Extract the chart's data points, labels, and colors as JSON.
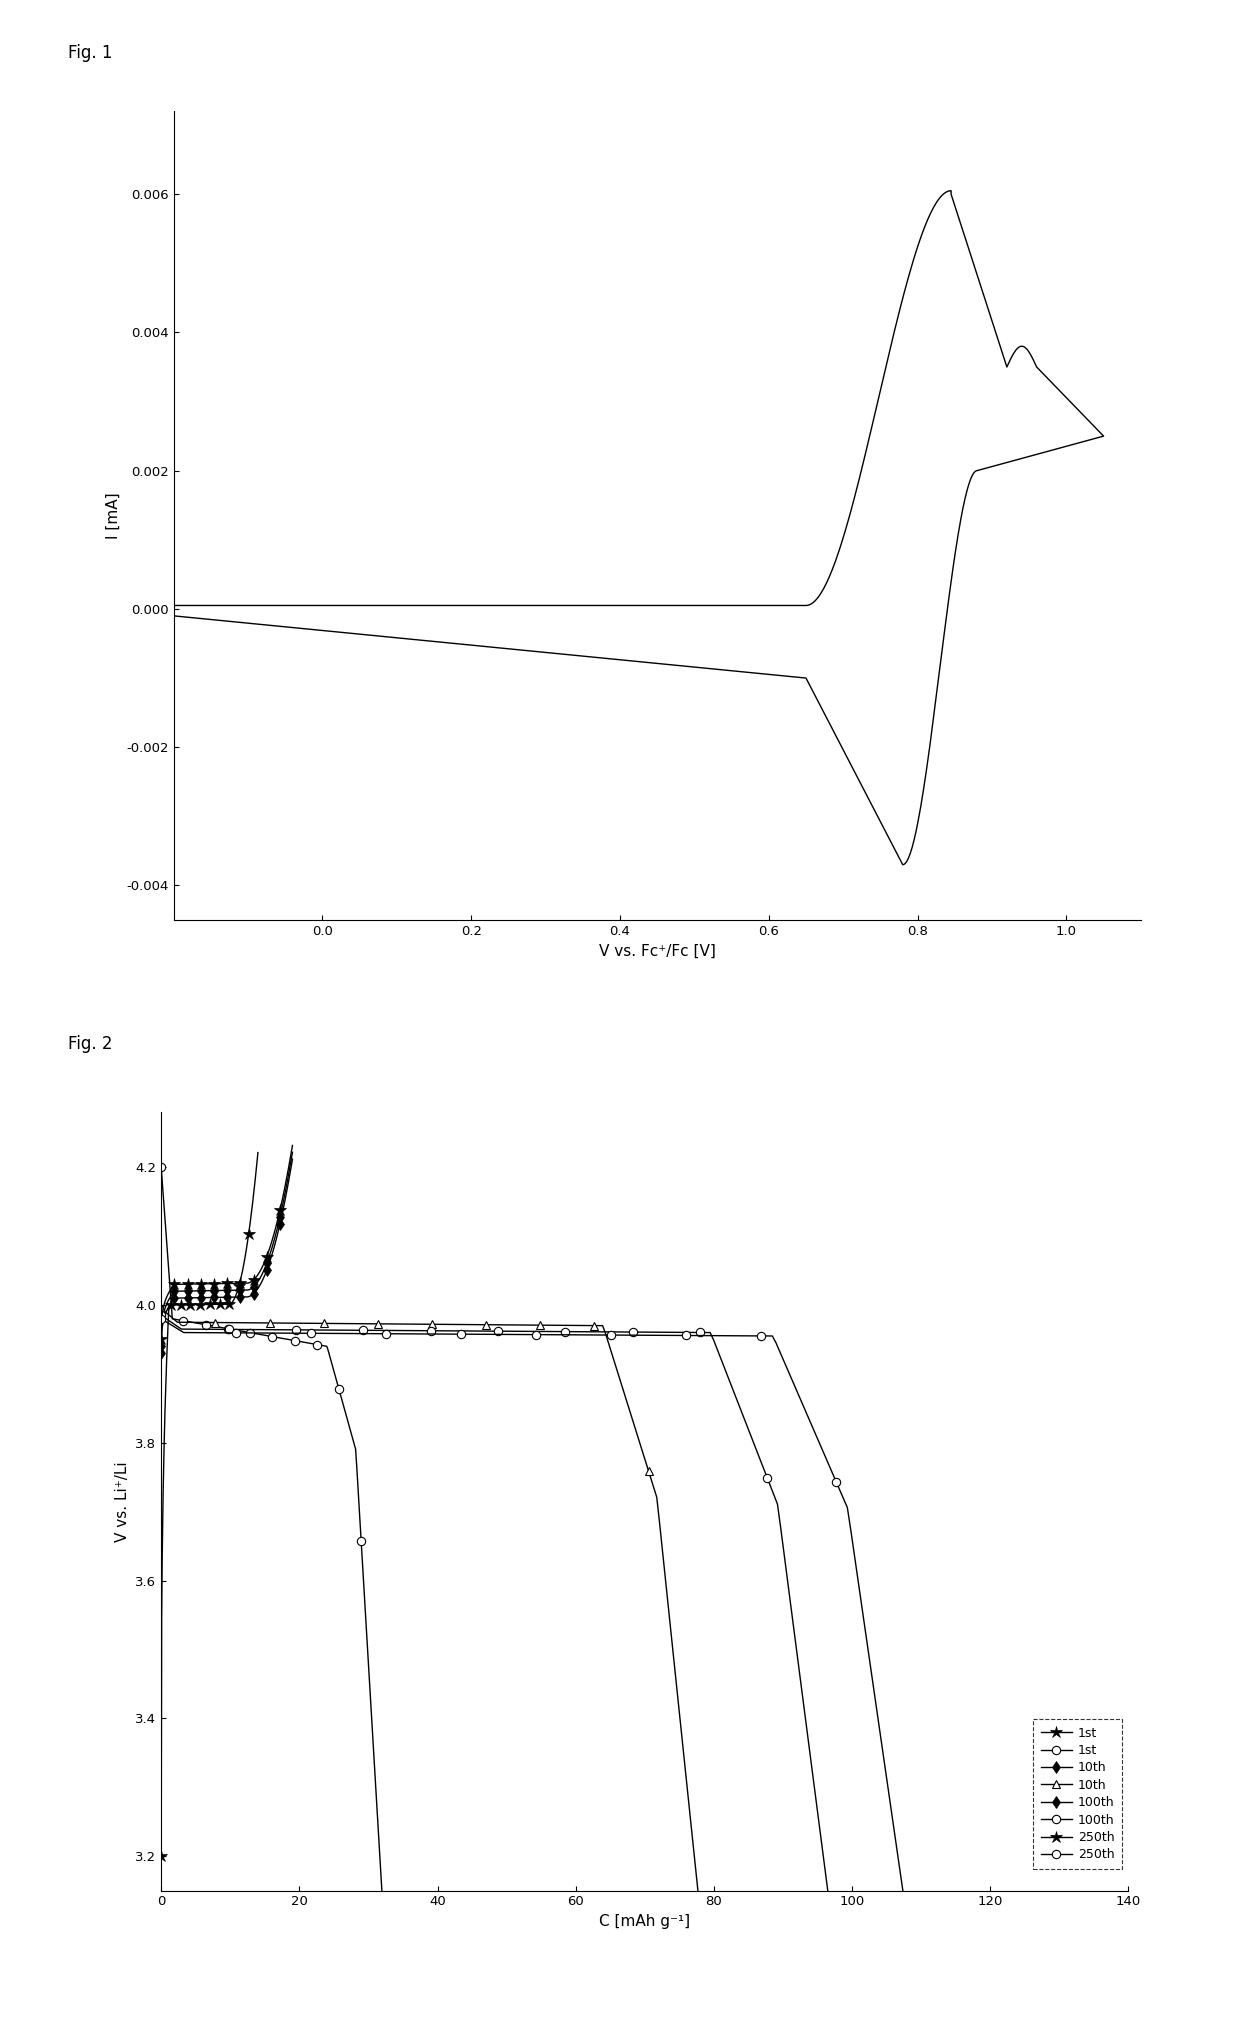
{
  "fig1_title": "Fig. 1",
  "fig2_title": "Fig. 2",
  "fig1_xlabel": "V vs. Fc⁺/Fc [V]",
  "fig1_ylabel": "I [mA]",
  "fig1_xlim": [
    -0.2,
    1.1
  ],
  "fig1_ylim": [
    -0.0045,
    0.0072
  ],
  "fig1_yticks": [
    -0.004,
    -0.002,
    0.0,
    0.002,
    0.004,
    0.006
  ],
  "fig1_xticks": [
    0.0,
    0.2,
    0.4,
    0.6,
    0.8,
    1.0
  ],
  "fig2_xlabel": "C [mAh g⁻¹]",
  "fig2_ylabel": "V vs. Li⁺/Li",
  "fig2_xlim": [
    0,
    140
  ],
  "fig2_ylim": [
    3.15,
    4.28
  ],
  "fig2_xticks": [
    0,
    20,
    40,
    60,
    80,
    100,
    120,
    140
  ],
  "fig2_yticks": [
    3.2,
    3.4,
    3.6,
    3.8,
    4.0,
    4.2
  ],
  "background_color": "#ffffff",
  "line_color": "#000000",
  "legend_labels": [
    "1st",
    "1st",
    "10th",
    "10th",
    "100th",
    "100th",
    "250th",
    "250th"
  ]
}
